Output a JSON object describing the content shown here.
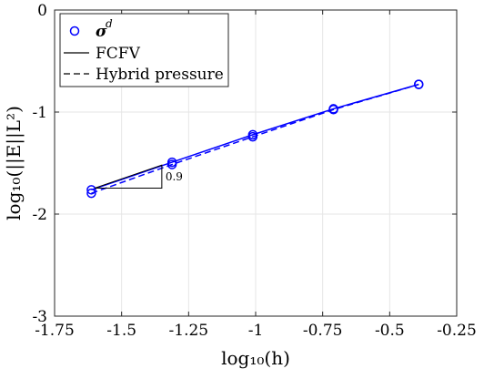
{
  "chart_data": {
    "type": "line",
    "title": "",
    "xlabel": "log₁₀(h)",
    "ylabel": "log₁₀(||E||L²)",
    "xlim": [
      -1.75,
      -0.25
    ],
    "ylim": [
      -3,
      0
    ],
    "xticks": [
      -1.75,
      -1.5,
      -1.25,
      -1,
      -0.75,
      -0.5,
      -0.25
    ],
    "yticks": [
      -3,
      -2,
      -1,
      0
    ],
    "xtick_labels": [
      "-1.75",
      "-1.5",
      "-1.25",
      "-1",
      "-0.75",
      "-0.5",
      "-0.25"
    ],
    "ytick_labels": [
      "-3",
      "-2",
      "-1",
      "0"
    ],
    "grid": true,
    "legend_position": "top-left",
    "colors": {
      "series": "#0000ff",
      "triangle": "#000000",
      "grid": "#e6e6e6",
      "axis": "#262626"
    },
    "series": [
      {
        "name": "FCFV",
        "marker": "circle",
        "line_style": "solid",
        "points": [
          {
            "x": -1.6128,
            "y": -1.762
          },
          {
            "x": -1.3118,
            "y": -1.492
          },
          {
            "x": -1.0107,
            "y": -1.222
          },
          {
            "x": -0.7097,
            "y": -0.968
          },
          {
            "x": -0.3917,
            "y": -0.729
          }
        ]
      },
      {
        "name": "Hybrid pressure",
        "marker": "circle",
        "line_style": "dashed",
        "points": [
          {
            "x": -1.6128,
            "y": -1.796
          },
          {
            "x": -1.3118,
            "y": -1.514
          },
          {
            "x": -1.0107,
            "y": -1.242
          },
          {
            "x": -0.7097,
            "y": -0.976
          },
          {
            "x": -0.3917,
            "y": -0.729
          }
        ]
      }
    ],
    "legend": {
      "marker_label_main": "σ",
      "marker_label_sup": "d",
      "solid_label": "FCFV",
      "dashed_label": "Hybrid pressure"
    },
    "slope_triangle": {
      "label": "0.9",
      "x_start": -1.6,
      "x_end": -1.35,
      "y_base": -1.745,
      "slope": 0.9
    }
  }
}
